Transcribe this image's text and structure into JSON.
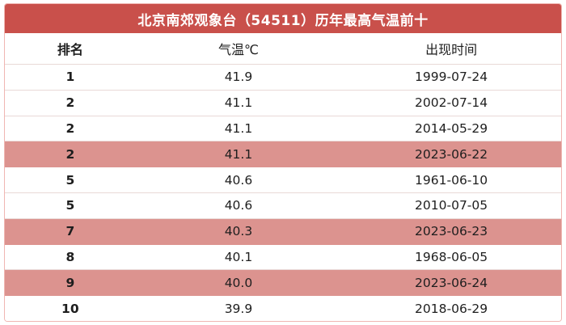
{
  "title": "北京南郊观象台（54511）历年最高气温前十",
  "chart_data": {
    "type": "table",
    "title": "北京南郊观象台（54511）历年最高气温前十",
    "station_id": "54511",
    "columns": [
      "排名",
      "气温℃",
      "出现时间"
    ],
    "rows": [
      [
        "1",
        "41.9",
        "1999-07-24"
      ],
      [
        "2",
        "41.1",
        "2002-07-14"
      ],
      [
        "2",
        "41.1",
        "2014-05-29"
      ],
      [
        "2",
        "41.1",
        "2023-06-22"
      ],
      [
        "5",
        "40.6",
        "1961-06-10"
      ],
      [
        "5",
        "40.6",
        "2010-07-05"
      ],
      [
        "7",
        "40.3",
        "2023-06-23"
      ],
      [
        "8",
        "40.1",
        "1968-06-05"
      ],
      [
        "9",
        "40.0",
        "2023-06-24"
      ],
      [
        "10",
        "39.9",
        "2018-06-29"
      ]
    ],
    "highlighted_row_indexes": [
      3,
      6,
      8
    ]
  },
  "colors": {
    "header_red": "#c9504b",
    "highlight_pink": "#dc938f",
    "border_pink": "#f0b6b2",
    "separator": "#e9d9d7",
    "text_dark": "#1e1e1e",
    "title_text": "#ffffff"
  }
}
